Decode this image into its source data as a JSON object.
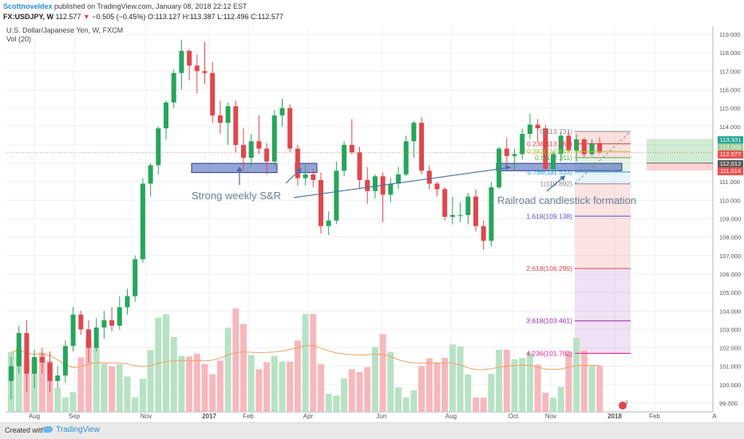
{
  "header": {
    "author": "Scottnoveldex",
    "published": "published on TradingView.com, January 08, 2018 22:12 EST",
    "symbol": "FX:USDJPY, W",
    "last": "112.577",
    "change": "−0.505 (−0.45%)",
    "ohlc": "O:113.127 H:113.387 L:112.496 C:112.577"
  },
  "overlay": {
    "title": "U.S. Dollar/Japanese Yen, W, FXCM",
    "volume_label": "Vol (20)"
  },
  "footer": {
    "created": "Created with",
    "brand": "TradingView"
  },
  "price_tags": [
    {
      "text": "113.331",
      "color": "#26a69a"
    },
    {
      "text": "113.000",
      "color": "#9acd95"
    },
    {
      "text": "112.577",
      "color": "#ef5350"
    },
    {
      "text": "112.012",
      "color": "#5b5b5b"
    },
    {
      "text": "111.614",
      "color": "#ef5350"
    }
  ],
  "colors": {
    "up": "#26a65b",
    "down": "#e0474c",
    "vol_up": "#b8e2c4",
    "vol_down": "#f6b8bd",
    "ma": "#f0a060"
  },
  "chart_data": {
    "type": "candlestick",
    "y_ticks": [
      "119.000",
      "118.000",
      "117.000",
      "116.000",
      "115.000",
      "114.000",
      "113.000",
      "112.000",
      "111.000",
      "110.000",
      "109.000",
      "108.000",
      "107.000",
      "106.000",
      "105.000",
      "104.000",
      "103.000",
      "102.000",
      "101.000",
      "100.000",
      "99.000"
    ],
    "x_ticks": [
      "Aug",
      "Sep",
      "Nov",
      "2017",
      "Feb",
      "Apr",
      "Jun",
      "Aug",
      "Oct",
      "Nov",
      "2018",
      "Feb",
      "A"
    ],
    "ylim": [
      98.5,
      119.5
    ],
    "candles": [
      [
        100.2,
        101.5,
        99.2,
        101.0
      ],
      [
        101.0,
        103.2,
        100.6,
        102.8
      ],
      [
        102.8,
        103.5,
        99.6,
        100.6
      ],
      [
        100.6,
        101.9,
        99.8,
        101.5
      ],
      [
        101.5,
        102.0,
        100.6,
        101.2
      ],
      [
        101.2,
        101.8,
        99.6,
        100.2
      ],
      [
        100.2,
        101.0,
        99.8,
        100.5
      ],
      [
        100.5,
        102.4,
        100.1,
        102.1
      ],
      [
        102.1,
        104.2,
        101.8,
        103.8
      ],
      [
        103.8,
        104.0,
        102.7,
        103.0
      ],
      [
        103.0,
        103.5,
        101.2,
        102.0
      ],
      [
        102.0,
        103.6,
        101.8,
        103.1
      ],
      [
        103.1,
        104.0,
        102.5,
        103.5
      ],
      [
        103.5,
        104.2,
        102.9,
        103.2
      ],
      [
        103.2,
        104.8,
        103.0,
        104.2
      ],
      [
        104.2,
        105.2,
        103.8,
        104.8
      ],
      [
        104.8,
        107.0,
        104.5,
        106.8
      ],
      [
        106.8,
        111.2,
        106.6,
        110.9
      ],
      [
        110.9,
        112.0,
        110.2,
        111.9
      ],
      [
        111.9,
        114.0,
        111.4,
        113.9
      ],
      [
        113.9,
        115.4,
        113.3,
        115.3
      ],
      [
        115.3,
        117.1,
        115.0,
        116.9
      ],
      [
        116.9,
        118.7,
        116.0,
        118.1
      ],
      [
        118.1,
        118.2,
        116.5,
        117.3
      ],
      [
        117.3,
        117.9,
        115.8,
        117.0
      ],
      [
        117.0,
        118.6,
        116.3,
        116.9
      ],
      [
        116.9,
        117.5,
        114.2,
        114.6
      ],
      [
        114.6,
        115.4,
        113.6,
        114.2
      ],
      [
        114.2,
        115.3,
        113.0,
        115.1
      ],
      [
        115.1,
        115.4,
        112.6,
        113.0
      ],
      [
        113.0,
        113.9,
        111.6,
        112.3
      ],
      [
        112.3,
        113.6,
        111.8,
        113.2
      ],
      [
        113.2,
        114.6,
        112.5,
        112.8
      ],
      [
        112.8,
        113.1,
        111.4,
        112.1
      ],
      [
        112.1,
        114.9,
        111.8,
        114.6
      ],
      [
        114.6,
        115.5,
        114.0,
        115.0
      ],
      [
        115.0,
        115.2,
        112.6,
        112.8
      ],
      [
        112.8,
        113.0,
        110.8,
        111.2
      ],
      [
        111.2,
        111.9,
        110.8,
        111.4
      ],
      [
        111.4,
        111.7,
        110.7,
        111.1
      ],
      [
        111.1,
        111.5,
        108.2,
        108.6
      ],
      [
        108.6,
        109.4,
        108.1,
        108.9
      ],
      [
        108.9,
        112.1,
        108.7,
        111.6
      ],
      [
        111.6,
        113.2,
        111.3,
        113.0
      ],
      [
        113.0,
        114.4,
        112.5,
        112.6
      ],
      [
        112.6,
        112.9,
        110.6,
        111.1
      ],
      [
        111.1,
        111.8,
        109.8,
        110.5
      ],
      [
        110.5,
        111.4,
        110.1,
        111.3
      ],
      [
        111.3,
        111.5,
        108.8,
        110.3
      ],
      [
        110.3,
        111.2,
        109.9,
        110.9
      ],
      [
        110.9,
        111.8,
        110.6,
        111.4
      ],
      [
        111.4,
        113.5,
        111.3,
        113.2
      ],
      [
        113.2,
        114.3,
        112.3,
        114.2
      ],
      [
        114.2,
        114.5,
        111.4,
        111.6
      ],
      [
        111.6,
        111.9,
        110.6,
        110.9
      ],
      [
        110.9,
        111.0,
        110.2,
        110.6
      ],
      [
        110.6,
        110.7,
        108.9,
        109.1
      ],
      [
        109.1,
        110.2,
        108.7,
        109.2
      ],
      [
        109.2,
        109.9,
        108.8,
        109.2
      ],
      [
        109.2,
        110.4,
        108.7,
        110.2
      ],
      [
        110.2,
        110.6,
        108.3,
        108.6
      ],
      [
        108.6,
        108.9,
        107.3,
        107.8
      ],
      [
        107.8,
        111.0,
        107.5,
        110.7
      ],
      [
        110.7,
        112.9,
        110.6,
        112.8
      ],
      [
        112.8,
        113.4,
        111.8,
        112.4
      ],
      [
        112.4,
        112.8,
        111.6,
        112.5
      ],
      [
        112.5,
        113.9,
        112.2,
        113.6
      ],
      [
        113.6,
        114.7,
        113.3,
        114.1
      ],
      [
        114.1,
        114.4,
        113.2,
        113.9
      ],
      [
        113.9,
        114.1,
        111.6,
        111.7
      ],
      [
        111.7,
        112.7,
        111.5,
        112.5
      ],
      [
        112.5,
        113.7,
        112.1,
        113.5
      ],
      [
        113.5,
        113.8,
        112.6,
        112.7
      ],
      [
        112.7,
        113.6,
        112.1,
        113.3
      ],
      [
        113.3,
        113.4,
        112.3,
        112.5
      ],
      [
        112.5,
        113.3,
        112.4,
        113.1
      ],
      [
        113.1,
        113.4,
        112.5,
        112.6
      ]
    ],
    "volume_ma": "Vol (20)"
  },
  "annotations": {
    "strong_sr": "Strong weekly S&R",
    "railroad": "Railroad candlestick formation",
    "fib_levels": [
      {
        "label": "0(113.731)",
        "value": 113.731,
        "color": "#888888"
      },
      {
        "label": "0.236(113.061)",
        "value": 113.061,
        "color": "#e0474c"
      },
      {
        "label": "0.382(112.646)",
        "value": 112.646,
        "color": "#9acd35"
      },
      {
        "label": "0.5(112.311)",
        "value": 112.311,
        "color": "#4caf50"
      },
      {
        "label": "0.786(111.533)",
        "value": 111.533,
        "color": "#2196f3"
      },
      {
        "label": "1(110.892)",
        "value": 110.892,
        "color": "#888888"
      },
      {
        "label": "1.618(109.138)",
        "value": 109.138,
        "color": "#5b4fd8"
      },
      {
        "label": "2.618(106.299)",
        "value": 106.299,
        "color": "#e0474c"
      },
      {
        "label": "3.618(103.461)",
        "value": 103.461,
        "color": "#9c27b0"
      },
      {
        "label": "4.236(101.702)",
        "value": 101.702,
        "color": "#e91e8c"
      }
    ]
  }
}
